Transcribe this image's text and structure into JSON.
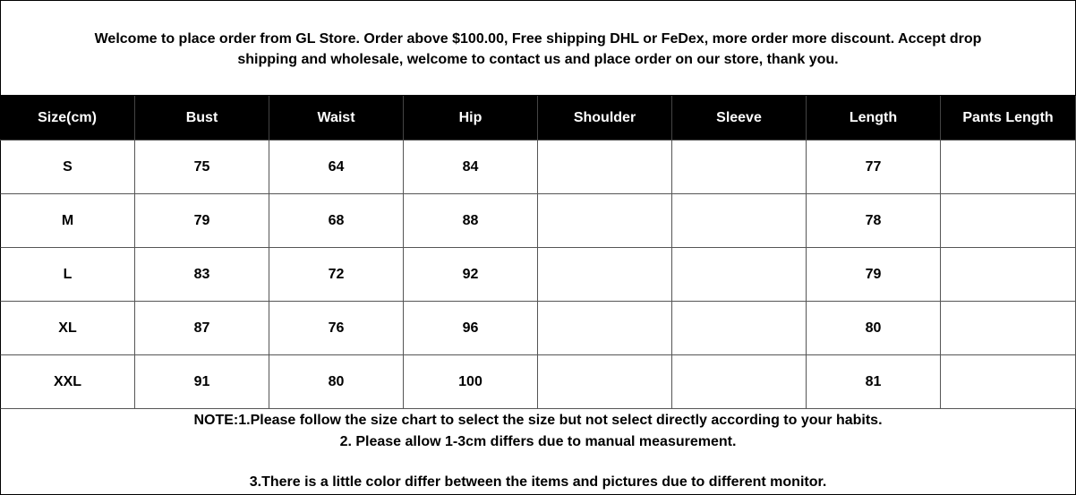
{
  "header": {
    "lines": [
      "Welcome to place order from GL Store. Order above $100.00, Free shipping DHL or FeDex, more order more discount. Accept drop",
      "shipping and wholesale, welcome to contact us and place order on our store, thank you."
    ]
  },
  "table": {
    "columns": [
      "Size(cm)",
      "Bust",
      "Waist",
      "Hip",
      "Shoulder",
      "Sleeve",
      "Length",
      "Pants Length"
    ],
    "rows": [
      [
        "S",
        75,
        64,
        84,
        null,
        null,
        77,
        null
      ],
      [
        "M",
        79,
        68,
        88,
        null,
        null,
        78,
        null
      ],
      [
        "L",
        83,
        72,
        92,
        null,
        null,
        79,
        null
      ],
      [
        "XL",
        87,
        76,
        96,
        null,
        null,
        80,
        null
      ],
      [
        "XXL",
        91,
        80,
        100,
        null,
        null,
        81,
        null
      ]
    ]
  },
  "notes": [
    "NOTE:1.Please follow the size chart to select the size but not select directly according to your habits.",
    "2. Please allow 1-3cm differs due to manual measurement.",
    "3.There is a little color differ between the items and pictures due to different monitor."
  ]
}
